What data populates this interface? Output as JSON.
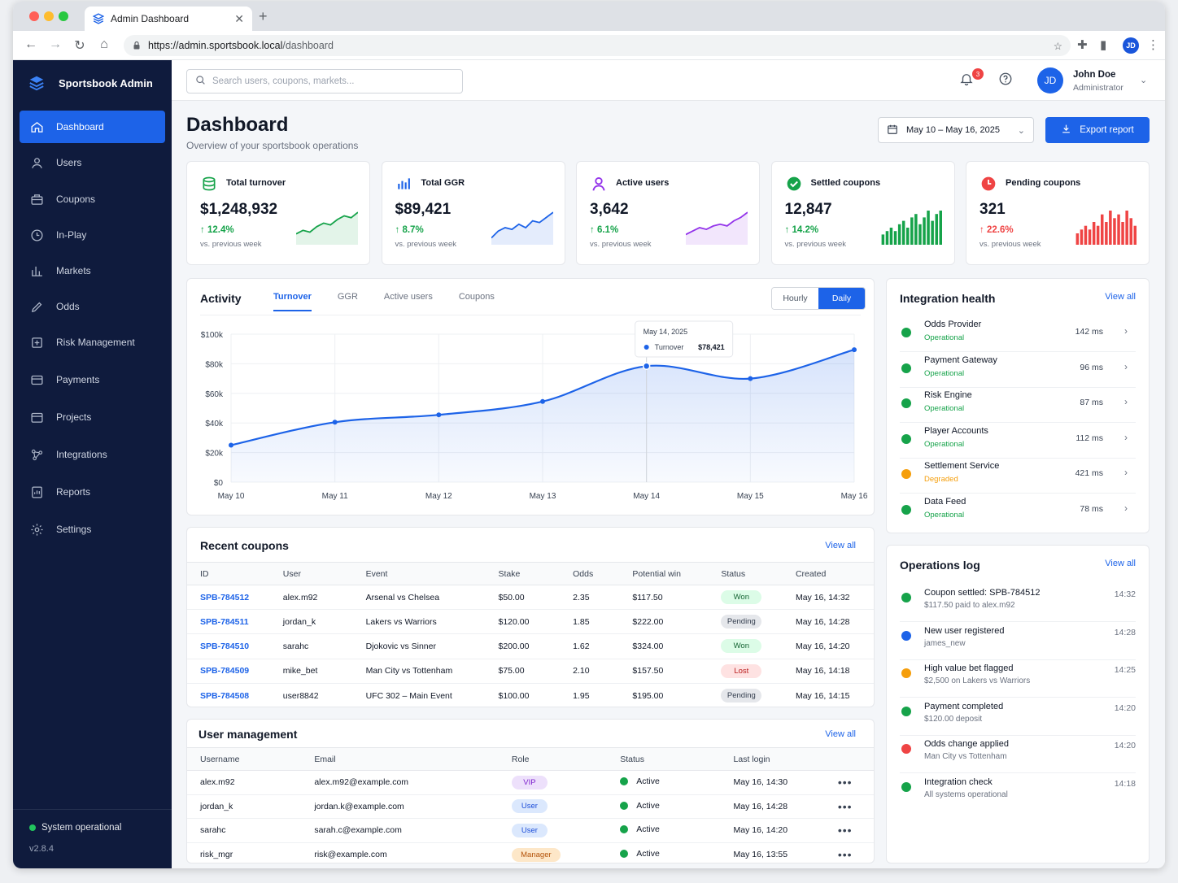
{
  "browser": {
    "tab_title": "Admin Dashboard",
    "url_host": "https://admin.sportsbook.local",
    "url_path": "/dashboard",
    "profile_initials": "JD"
  },
  "sidebar": {
    "brand": "Sportsbook Admin",
    "items": [
      {
        "label": "Dashboard",
        "icon": "home-icon"
      },
      {
        "label": "Users",
        "icon": "user-icon"
      },
      {
        "label": "Coupons",
        "icon": "briefcase-icon"
      },
      {
        "label": "In-Play",
        "icon": "clock-icon"
      },
      {
        "label": "Markets",
        "icon": "bar-chart-icon"
      },
      {
        "label": "Odds",
        "icon": "pencil-icon"
      },
      {
        "label": "Risk Management",
        "icon": "shield-icon"
      },
      {
        "label": "Payments",
        "icon": "card-icon"
      },
      {
        "label": "Projects",
        "icon": "folder-icon"
      },
      {
        "label": "Integrations",
        "icon": "network-icon"
      },
      {
        "label": "Reports",
        "icon": "report-icon"
      },
      {
        "label": "Settings",
        "icon": "gear-icon"
      }
    ],
    "status": "System operational",
    "version": "v2.8.4"
  },
  "topbar": {
    "search_placeholder": "Search users, coupons, markets...",
    "notifications": "3",
    "user_initials": "JD",
    "user_name": "John Doe",
    "user_role": "Administrator"
  },
  "header": {
    "title": "Dashboard",
    "subtitle": "Overview of your sportsbook operations",
    "date_range": "May 10 – May 16, 2025",
    "export_label": "Export report"
  },
  "kpis": [
    {
      "label": "Total turnover",
      "value": "$1,248,932",
      "change": "12.4%",
      "vs": "vs. previous week",
      "color": "#16a34a",
      "icon": "stack-icon",
      "spark": [
        3,
        4,
        3.5,
        5,
        6,
        5.5,
        7,
        8,
        7.5,
        9
      ]
    },
    {
      "label": "Total GGR",
      "value": "$89,421",
      "change": "8.7%",
      "vs": "vs. previous week",
      "color": "#1d63e8",
      "icon": "bars-icon",
      "spark": [
        2,
        4,
        5,
        4.5,
        6,
        5,
        7,
        6.5,
        8,
        9.5
      ]
    },
    {
      "label": "Active users",
      "value": "3,642",
      "change": "6.1%",
      "vs": "vs. previous week",
      "color": "#9333ea",
      "icon": "person-icon",
      "spark": [
        3,
        4,
        5,
        4.5,
        5.5,
        6,
        5.5,
        7,
        8,
        9.5
      ]
    },
    {
      "label": "Settled coupons",
      "value": "12,847",
      "change": "14.2%",
      "vs": "vs. previous week",
      "color": "#16a34a",
      "icon": "check-icon",
      "bars": [
        3,
        4,
        5,
        4,
        6,
        7,
        5,
        8,
        9,
        6,
        8,
        10,
        7,
        9,
        10
      ]
    },
    {
      "label": "Pending coupons",
      "value": "321",
      "change": "22.6%",
      "vs": "vs. previous week",
      "color": "#ef4444",
      "icon": "clock-icon",
      "bars": [
        3,
        4,
        5,
        4,
        6,
        5,
        8,
        6,
        9,
        7,
        8,
        6,
        9,
        7,
        5
      ]
    }
  ],
  "activity": {
    "title": "Activity",
    "tabs": [
      "Turnover",
      "GGR",
      "Active users",
      "Coupons"
    ],
    "toggle": [
      "Hourly",
      "Daily"
    ],
    "tooltip_date": "May 14, 2025",
    "tooltip_series": "Turnover",
    "tooltip_value": "$78,421"
  },
  "chart_data": {
    "type": "area",
    "categories": [
      "May 10",
      "May 11",
      "May 12",
      "May 13",
      "May 14",
      "May 15",
      "May 16"
    ],
    "series": [
      {
        "name": "Turnover",
        "values": [
          25000,
          40500,
          45500,
          54500,
          78421,
          70000,
          89500
        ]
      }
    ],
    "ylim": [
      0,
      100000
    ],
    "yticks": [
      "$0",
      "$20k",
      "$40k",
      "$60k",
      "$80k",
      "$100k"
    ],
    "grid": true,
    "color": "#1d63e8"
  },
  "recent_coupons": {
    "title": "Recent coupons",
    "view_all": "View all",
    "columns": [
      "ID",
      "User",
      "Event",
      "Stake",
      "Odds",
      "Potential win",
      "Status",
      "Created"
    ],
    "rows": [
      {
        "id": "SPB-784512",
        "user": "alex.m92",
        "event": "Arsenal vs Chelsea",
        "stake": "$50.00",
        "odds": "2.35",
        "win": "$117.50",
        "status": "Won",
        "created": "May 16, 14:32"
      },
      {
        "id": "SPB-784511",
        "user": "jordan_k",
        "event": "Lakers vs Warriors",
        "stake": "$120.00",
        "odds": "1.85",
        "win": "$222.00",
        "status": "Pending",
        "created": "May 16, 14:28"
      },
      {
        "id": "SPB-784510",
        "user": "sarahc",
        "event": "Djokovic vs Sinner",
        "stake": "$200.00",
        "odds": "1.62",
        "win": "$324.00",
        "status": "Won",
        "created": "May 16, 14:20"
      },
      {
        "id": "SPB-784509",
        "user": "mike_bet",
        "event": "Man City vs Tottenham",
        "stake": "$75.00",
        "odds": "2.10",
        "win": "$157.50",
        "status": "Lost",
        "created": "May 16, 14:18"
      },
      {
        "id": "SPB-784508",
        "user": "user8842",
        "event": "UFC 302 – Main Event",
        "stake": "$100.00",
        "odds": "1.95",
        "win": "$195.00",
        "status": "Pending",
        "created": "May 16, 14:15"
      }
    ]
  },
  "user_management": {
    "title": "User management",
    "view_all": "View all",
    "columns": [
      "Username",
      "Email",
      "Role",
      "Status",
      "Last login"
    ],
    "rows": [
      {
        "username": "alex.m92",
        "email": "alex.m92@example.com",
        "role": "VIP",
        "status": "Active",
        "last": "May 16, 14:30"
      },
      {
        "username": "jordan_k",
        "email": "jordan.k@example.com",
        "role": "User",
        "status": "Active",
        "last": "May 16, 14:28"
      },
      {
        "username": "sarahc",
        "email": "sarah.c@example.com",
        "role": "User",
        "status": "Active",
        "last": "May 16, 14:20"
      },
      {
        "username": "risk_mgr",
        "email": "risk@example.com",
        "role": "Manager",
        "status": "Active",
        "last": "May 16, 13:55"
      }
    ]
  },
  "integration_health": {
    "title": "Integration health",
    "view_all": "View all",
    "items": [
      {
        "name": "Odds Provider",
        "status": "Operational",
        "latency": "142 ms",
        "color": "#16a34a"
      },
      {
        "name": "Payment Gateway",
        "status": "Operational",
        "latency": "96 ms",
        "color": "#16a34a"
      },
      {
        "name": "Risk Engine",
        "status": "Operational",
        "latency": "87 ms",
        "color": "#16a34a"
      },
      {
        "name": "Player Accounts",
        "status": "Operational",
        "latency": "112 ms",
        "color": "#16a34a"
      },
      {
        "name": "Settlement Service",
        "status": "Degraded",
        "latency": "421 ms",
        "color": "#f59e0b"
      },
      {
        "name": "Data Feed",
        "status": "Operational",
        "latency": "78 ms",
        "color": "#16a34a"
      }
    ]
  },
  "operations_log": {
    "title": "Operations log",
    "view_all": "View all",
    "items": [
      {
        "title": "Coupon settled: SPB-784512",
        "desc": "$117.50 paid to alex.m92",
        "time": "14:32",
        "color": "#16a34a"
      },
      {
        "title": "New user registered",
        "desc": "james_new",
        "time": "14:28",
        "color": "#1d63e8"
      },
      {
        "title": "High value bet flagged",
        "desc": "$2,500 on Lakers vs Warriors",
        "time": "14:25",
        "color": "#f59e0b"
      },
      {
        "title": "Payment completed",
        "desc": "$120.00 deposit",
        "time": "14:20",
        "color": "#16a34a"
      },
      {
        "title": "Odds change applied",
        "desc": "Man City vs Tottenham",
        "time": "14:20",
        "color": "#ef4444"
      },
      {
        "title": "Integration check",
        "desc": "All systems operational",
        "time": "14:18",
        "color": "#16a34a"
      }
    ]
  }
}
